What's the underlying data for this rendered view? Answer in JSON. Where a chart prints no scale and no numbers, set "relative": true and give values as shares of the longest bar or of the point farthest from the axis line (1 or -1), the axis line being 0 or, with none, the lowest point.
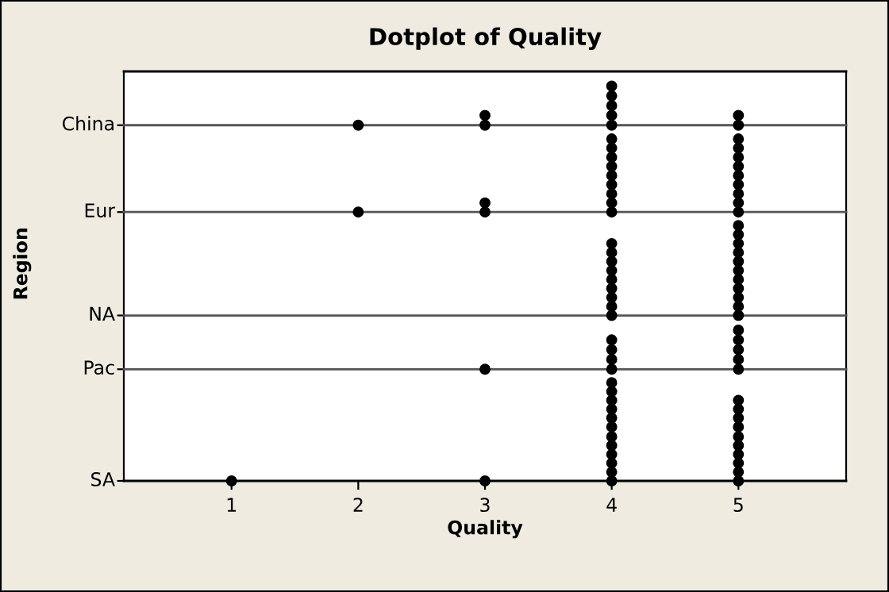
{
  "chart_data": [
    {
      "type": "scatter",
      "title": "Dotplot of Quality",
      "relative": true,
      "xlim": [
        0.15,
        5.85
      ],
      "tick_labels": false,
      "marker": "circle",
      "series": [
        {
          "name": "China",
          "color": "#000000",
          "x": [
            2,
            3,
            3,
            4,
            4,
            4,
            4,
            4,
            5,
            5
          ],
          "values": [
            0,
            0,
            0.25,
            0,
            0.25,
            0.5,
            0.75,
            1,
            0,
            0.25
          ]
        }
      ]
    },
    {
      "type": "scatter",
      "relative": true,
      "xlim": [
        0.15,
        5.85
      ],
      "tick_labels": false,
      "marker": "circle",
      "series": [
        {
          "name": "Eur",
          "color": "#000000",
          "x": [
            2,
            3,
            3,
            4,
            4,
            4,
            4,
            4,
            4,
            4,
            4,
            4,
            5,
            5,
            5,
            5,
            5,
            5,
            5,
            5,
            5
          ],
          "values": [
            0,
            0,
            0.125,
            0,
            0.125,
            0.25,
            0.375,
            0.5,
            0.625,
            0.75,
            0.875,
            1,
            0,
            0.125,
            0.25,
            0.375,
            0.5,
            0.625,
            0.75,
            0.875,
            1
          ]
        }
      ]
    },
    {
      "type": "scatter",
      "ylabel": "Region",
      "relative": true,
      "xlim": [
        0.15,
        5.85
      ],
      "tick_labels": false,
      "marker": "circle",
      "series": [
        {
          "name": "NA",
          "color": "#000000",
          "x": [
            4,
            4,
            4,
            4,
            4,
            4,
            4,
            4,
            4,
            5,
            5,
            5,
            5,
            5,
            5,
            5,
            5,
            5,
            5,
            5
          ],
          "values": [
            0,
            0.1,
            0.2,
            0.3,
            0.4,
            0.5,
            0.6,
            0.7,
            0.8,
            0,
            0.1,
            0.2,
            0.3,
            0.4,
            0.5,
            0.6,
            0.7,
            0.8,
            0.9,
            1
          ]
        }
      ]
    },
    {
      "type": "scatter",
      "relative": true,
      "xlim": [
        0.15,
        5.85
      ],
      "tick_labels": false,
      "marker": "circle",
      "series": [
        {
          "name": "Pac",
          "color": "#000000",
          "x": [
            3,
            4,
            4,
            4,
            4,
            5,
            5,
            5,
            5,
            5
          ],
          "values": [
            0,
            0,
            0.25,
            0.5,
            0.75,
            0,
            0.25,
            0.5,
            0.75,
            1
          ]
        }
      ]
    },
    {
      "type": "scatter",
      "xlabel": "Quality",
      "relative": true,
      "xlim": [
        0.15,
        5.85
      ],
      "xticks": [
        1,
        2,
        3,
        4,
        5
      ],
      "tick_labels": "x",
      "marker": "circle",
      "series": [
        {
          "name": "SA",
          "color": "#000000",
          "x": [
            1,
            3,
            4,
            4,
            4,
            4,
            4,
            4,
            4,
            4,
            4,
            4,
            4,
            4,
            5,
            5,
            5,
            5,
            5,
            5,
            5,
            5,
            5,
            5
          ],
          "values": [
            0,
            0,
            0,
            0.09,
            0.18,
            0.27,
            0.36,
            0.45,
            0.55,
            0.64,
            0.73,
            0.82,
            0.91,
            1,
            0,
            0.09,
            0.18,
            0.27,
            0.36,
            0.45,
            0.55,
            0.64,
            0.73,
            0.82
          ]
        }
      ]
    }
  ]
}
